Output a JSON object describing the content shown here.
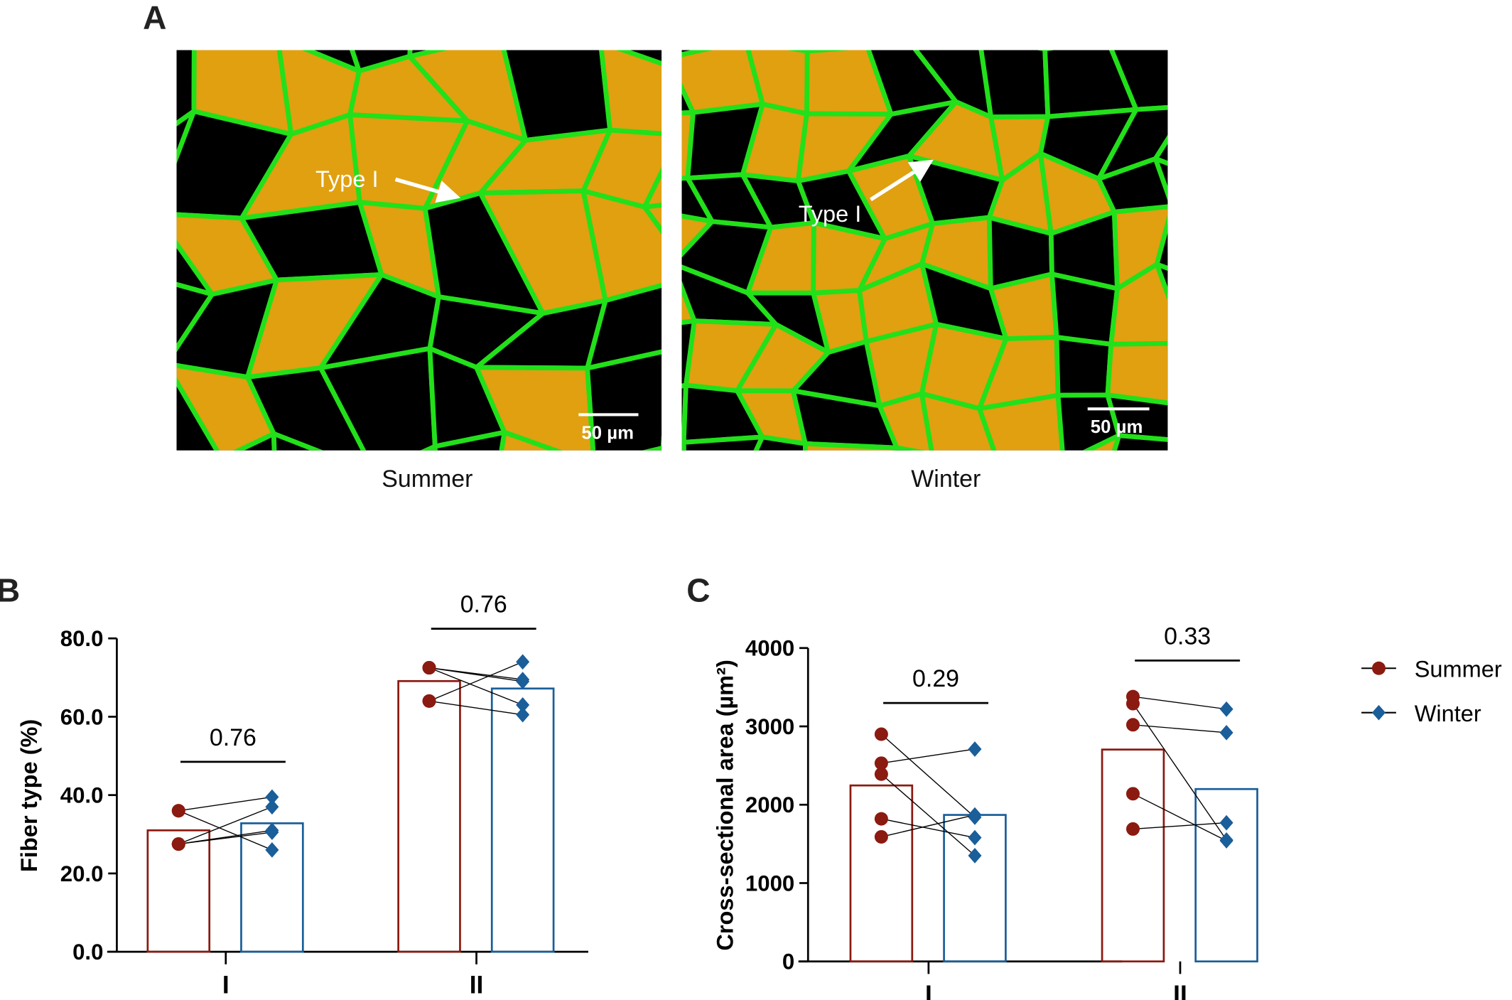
{
  "panel_a": {
    "label": "A",
    "images": [
      {
        "caption": "Summer",
        "annotation": "Type I",
        "scale_bar": "50 µm"
      },
      {
        "caption": "Winter",
        "annotation": "Type I",
        "scale_bar": "50 µm"
      }
    ]
  },
  "colors": {
    "summer": "#8b1a10",
    "winter": "#1a5e9a",
    "membrane": "#22e01a",
    "type1": "#e0a010"
  },
  "legend": {
    "summer": "Summer",
    "winter": "Winter"
  },
  "chart_data": [
    {
      "panel": "B",
      "type": "bar",
      "ylabel": "Fiber type (%)",
      "xlabel": "",
      "ylim": [
        0,
        80
      ],
      "yticks": [
        "0.0",
        "20.0",
        "40.0",
        "60.0",
        "80.0"
      ],
      "ytick_values": [
        0,
        20,
        40,
        60,
        80
      ],
      "categories": [
        "I",
        "II"
      ],
      "series": [
        {
          "name": "Summer",
          "values": [
            31.0,
            69.1
          ]
        },
        {
          "name": "Winter",
          "values": [
            32.8,
            67.2
          ]
        }
      ],
      "paired_points": [
        [
          [
            36,
            39.5
          ],
          [
            36,
            26
          ],
          [
            27.5,
            37
          ],
          [
            27.5,
            31
          ],
          [
            27.5,
            30.5
          ]
        ],
        [
          [
            64,
            74
          ],
          [
            64,
            60.5
          ],
          [
            72.5,
            69.5
          ],
          [
            72.5,
            69
          ],
          [
            72.5,
            63
          ]
        ]
      ],
      "p_values": [
        "0.76",
        "0.76"
      ]
    },
    {
      "panel": "C",
      "type": "bar",
      "ylabel": "Cross-sectional area (µm²)",
      "xlabel": "",
      "ylim": [
        0,
        4000
      ],
      "yticks": [
        "0",
        "1000",
        "2000",
        "3000",
        "4000"
      ],
      "ytick_values": [
        0,
        1000,
        2000,
        3000,
        4000
      ],
      "categories": [
        "I",
        "II"
      ],
      "series": [
        {
          "name": "Summer",
          "values": [
            2246,
            2704
          ]
        },
        {
          "name": "Winter",
          "values": [
            1870,
            2200
          ]
        }
      ],
      "paired_points": [
        [
          [
            2900,
            1840
          ],
          [
            2530,
            2710
          ],
          [
            2390,
            1350
          ],
          [
            1820,
            1580
          ],
          [
            1590,
            1870
          ]
        ],
        [
          [
            3380,
            3220
          ],
          [
            3290,
            1550
          ],
          [
            3020,
            2920
          ],
          [
            2140,
            1540
          ],
          [
            1690,
            1770
          ]
        ]
      ],
      "p_values": [
        "0.29",
        "0.33"
      ]
    }
  ]
}
